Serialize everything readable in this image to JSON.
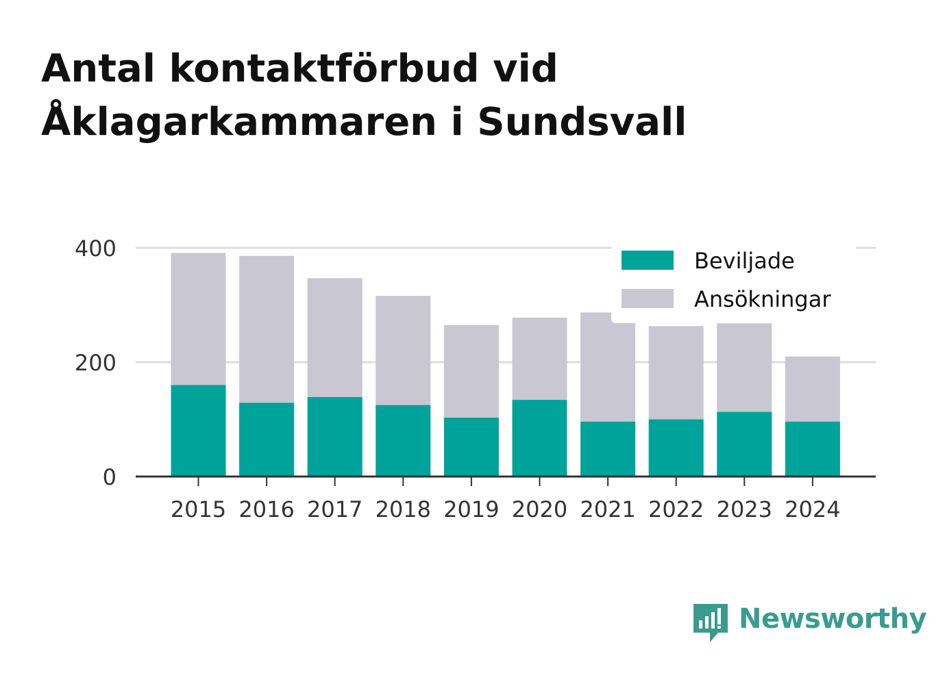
{
  "title_line1": "Antal kontaktförbud vid",
  "title_line2": "Åklagarkammaren i Sundsvall",
  "brand": "Newsworthy",
  "colors": {
    "beviljade": "#00a39a",
    "ansokningar": "#c8c7d2",
    "grid": "#dddddd",
    "axis": "#333333",
    "text": "#333333",
    "brand": "#3a9b90"
  },
  "chart_data": {
    "type": "bar",
    "stacked": false,
    "overlay": true,
    "categories": [
      "2015",
      "2016",
      "2017",
      "2018",
      "2019",
      "2020",
      "2021",
      "2022",
      "2023",
      "2024"
    ],
    "series": [
      {
        "name": "Beviljade",
        "values": [
          160,
          129,
          139,
          125,
          103,
          134,
          96,
          100,
          113,
          96
        ]
      },
      {
        "name": "Ansökningar",
        "values": [
          391,
          386,
          347,
          316,
          265,
          278,
          287,
          263,
          268,
          210
        ]
      }
    ],
    "ylim": [
      0,
      400
    ],
    "yticks": [
      "0",
      "200",
      "400"
    ],
    "grid": true,
    "legend": "top-right",
    "xlabel": "",
    "ylabel": ""
  }
}
